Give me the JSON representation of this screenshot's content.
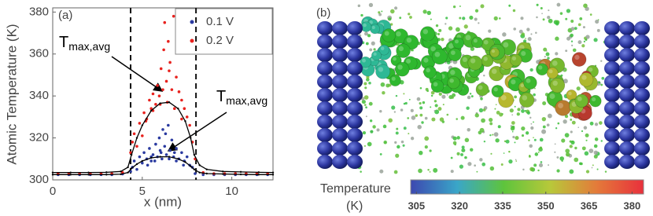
{
  "chart_data": [
    {
      "type": "scatter",
      "panel_label": "(a)",
      "xlabel": "x (nm)",
      "ylabel": "Atomic Temperature (K)",
      "xlim": [
        0,
        12.3
      ],
      "ylim": [
        300,
        382
      ],
      "xticks": [
        0,
        5,
        10
      ],
      "yticks": [
        300,
        320,
        340,
        360,
        380
      ],
      "vlines": [
        4.35,
        8.0
      ],
      "legend": "upper right",
      "series": [
        {
          "name": "0.1 V",
          "color": "#2a3aa0",
          "mode": "markers",
          "x": [
            0.3,
            0.9,
            1.5,
            2.1,
            2.7,
            3.3,
            3.9,
            4.35,
            4.45,
            4.55,
            4.7,
            4.85,
            5.0,
            5.1,
            5.25,
            5.4,
            5.5,
            5.6,
            5.75,
            5.85,
            5.95,
            6.05,
            6.15,
            6.25,
            6.35,
            6.45,
            6.55,
            6.65,
            6.75,
            6.9,
            7.05,
            7.2,
            7.35,
            7.5,
            7.65,
            7.8,
            7.95,
            8.4,
            9.0,
            9.6,
            10.2,
            10.8,
            11.4,
            12.0,
            5.3,
            5.7,
            6.1,
            6.5,
            6.9,
            7.3,
            5.5,
            6.0,
            6.3,
            6.8
          ],
          "values": [
            302.5,
            302.5,
            302.5,
            302.5,
            302.5,
            302.5,
            302.8,
            304,
            306,
            309,
            305,
            311,
            308,
            313,
            310,
            315,
            309,
            312,
            317,
            311,
            320,
            313,
            324,
            316,
            312,
            326,
            314,
            319,
            311,
            315,
            310,
            313,
            309,
            311,
            307,
            306,
            303,
            302.5,
            302.5,
            302.5,
            302.5,
            302.5,
            302.5,
            302.5,
            307,
            309,
            310,
            310,
            309,
            307,
            311,
            314,
            322,
            313
          ]
        },
        {
          "name": "0.2 V",
          "color": "#e8221e",
          "mode": "markers",
          "x": [
            0.3,
            0.9,
            1.5,
            2.1,
            2.7,
            3.3,
            3.9,
            4.35,
            4.45,
            4.55,
            4.7,
            4.85,
            5.0,
            5.1,
            5.25,
            5.4,
            5.5,
            5.6,
            5.75,
            5.85,
            5.95,
            6.05,
            6.15,
            6.25,
            6.35,
            6.45,
            6.55,
            6.65,
            6.75,
            6.9,
            7.05,
            7.2,
            7.35,
            7.5,
            7.65,
            7.8,
            7.95,
            8.4,
            9.0,
            9.6,
            10.2,
            10.8,
            11.4,
            12.0,
            5.2,
            5.6,
            6.0,
            6.4,
            6.8,
            7.2,
            6.2,
            6.5
          ],
          "values": [
            303,
            303,
            303,
            303,
            303,
            303,
            303.5,
            313,
            318,
            322,
            316,
            327,
            321,
            332,
            329,
            338,
            334,
            341,
            336,
            345,
            340,
            353,
            343,
            375,
            347,
            366,
            356,
            343,
            378,
            349,
            342,
            338,
            334,
            330,
            326,
            318,
            310,
            303.5,
            303,
            303,
            303,
            303,
            303,
            303,
            328,
            333,
            336,
            337,
            334,
            329,
            362,
            352
          ]
        },
        {
          "color": "#000000",
          "mode": "line",
          "x": [
            0,
            1,
            2,
            3,
            3.8,
            4.2,
            4.4,
            4.7,
            5.0,
            5.5,
            6.0,
            6.5,
            7.0,
            7.4,
            7.7,
            7.9,
            8.2,
            8.6,
            9.5,
            10.5,
            11.5,
            12.3
          ],
          "values": [
            303.5,
            303.5,
            303.5,
            303.6,
            304,
            306,
            312,
            320,
            326,
            333,
            336.5,
            337,
            334,
            328,
            320,
            312,
            307,
            305,
            304,
            303.8,
            303.6,
            303.5
          ]
        },
        {
          "color": "#000000",
          "mode": "line",
          "x": [
            0,
            1,
            2,
            3,
            3.8,
            4.2,
            4.4,
            4.7,
            5.0,
            5.5,
            6.0,
            6.5,
            7.0,
            7.4,
            7.7,
            7.9,
            8.2,
            8.6,
            9.5,
            10.5,
            11.5,
            12.3
          ],
          "values": [
            302.5,
            302.5,
            302.5,
            302.5,
            302.7,
            303.5,
            305.5,
            307.5,
            309,
            310.5,
            311,
            311,
            310,
            308.5,
            306.5,
            305,
            303.5,
            303,
            302.8,
            302.6,
            302.5,
            302.5
          ]
        }
      ],
      "annotations": [
        {
          "text": "T",
          "subscript": "max,avg"
        },
        {
          "text": "T",
          "subscript": "max,avg"
        }
      ]
    },
    {
      "type": "colorbar",
      "panel_label": "(b)",
      "title": "Temperature",
      "unit_label": "(K)",
      "clim": [
        303,
        384
      ],
      "ticks": [
        305,
        320,
        335,
        350,
        365,
        380
      ],
      "colormap": [
        "#3c48b0",
        "#3aa6c8",
        "#5ec43c",
        "#b8c83a",
        "#e47a3a",
        "#e8303c"
      ]
    }
  ]
}
